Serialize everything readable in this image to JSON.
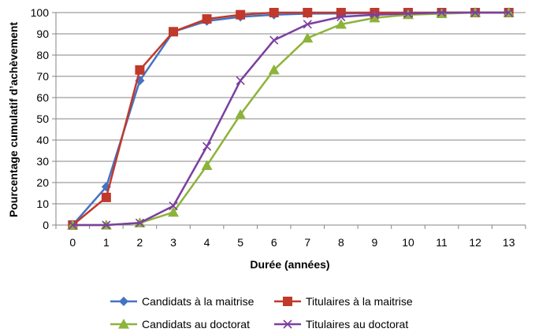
{
  "chart_data": {
    "type": "line",
    "title": "",
    "xlabel": "Durée (années)",
    "ylabel": "Pourcentage cumulatif d’achèvement",
    "x": [
      0,
      1,
      2,
      3,
      4,
      5,
      6,
      7,
      8,
      9,
      10,
      11,
      12,
      13
    ],
    "xlim": [
      0,
      13
    ],
    "ylim": [
      0,
      100
    ],
    "yticks": [
      0,
      10,
      20,
      30,
      40,
      50,
      60,
      70,
      80,
      90,
      100
    ],
    "grid": "horizontal",
    "legend_position": "bottom",
    "series": [
      {
        "name": "Candidats à la maitrise",
        "marker": "diamond",
        "color": "#4472C4",
        "values": [
          0,
          18,
          68,
          91,
          96,
          98,
          99,
          99.5,
          99.6,
          99.7,
          99.8,
          99.9,
          100,
          100
        ]
      },
      {
        "name": "Titulaires à la maitrise",
        "marker": "square",
        "color": "#C0392B",
        "values": [
          0,
          13,
          73,
          91,
          97,
          99,
          100,
          100,
          100,
          100,
          100,
          100,
          100,
          100
        ]
      },
      {
        "name": "Candidats au doctorat",
        "marker": "triangle",
        "color": "#8DB33A",
        "values": [
          0,
          0,
          1,
          6,
          28,
          52,
          73,
          88,
          94.5,
          97.5,
          99,
          99.5,
          100,
          100
        ]
      },
      {
        "name": "Titulaires au doctorat",
        "marker": "cross",
        "color": "#7B3FA0",
        "values": [
          0,
          0,
          1,
          9,
          37,
          68,
          87,
          94.5,
          98,
          99,
          99.5,
          100,
          100,
          100
        ]
      }
    ]
  }
}
